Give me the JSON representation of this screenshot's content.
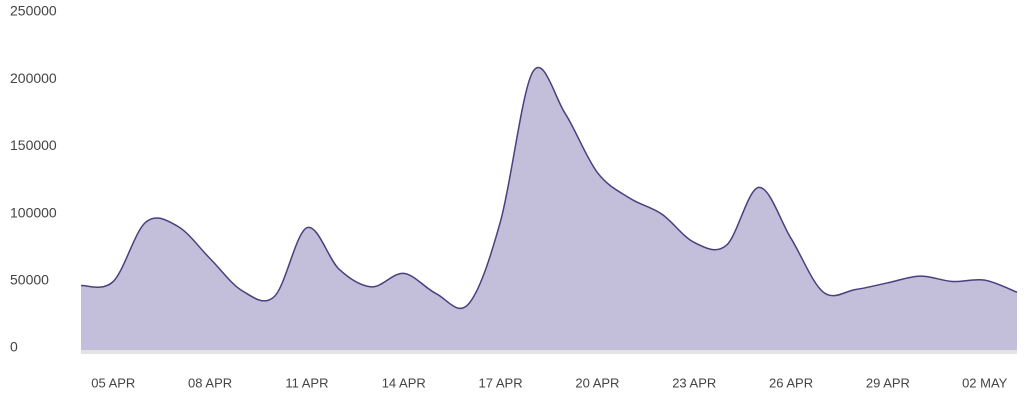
{
  "chart_data": {
    "type": "area",
    "categories": [
      null,
      "05 APR",
      null,
      null,
      "08 APR",
      null,
      null,
      "11 APR",
      null,
      null,
      "14 APR",
      null,
      null,
      "17 APR",
      null,
      null,
      "20 APR",
      null,
      null,
      "23 APR",
      null,
      null,
      "26 APR",
      null,
      null,
      "29 APR",
      null,
      null,
      "02 MAY",
      null
    ],
    "values": [
      48000,
      51000,
      95000,
      92000,
      68000,
      44000,
      40000,
      91000,
      60000,
      47000,
      57000,
      42000,
      34000,
      96000,
      207000,
      176000,
      132000,
      113000,
      101000,
      80000,
      78000,
      121000,
      83000,
      43000,
      45000,
      50000,
      55000,
      51000,
      52000,
      43000
    ],
    "color": "#4a3f7f",
    "fill_color": "#c3bfda",
    "ylim": [
      0,
      250000
    ],
    "yticks": [
      0,
      50000,
      100000,
      150000,
      200000,
      250000
    ],
    "grid": false
  }
}
